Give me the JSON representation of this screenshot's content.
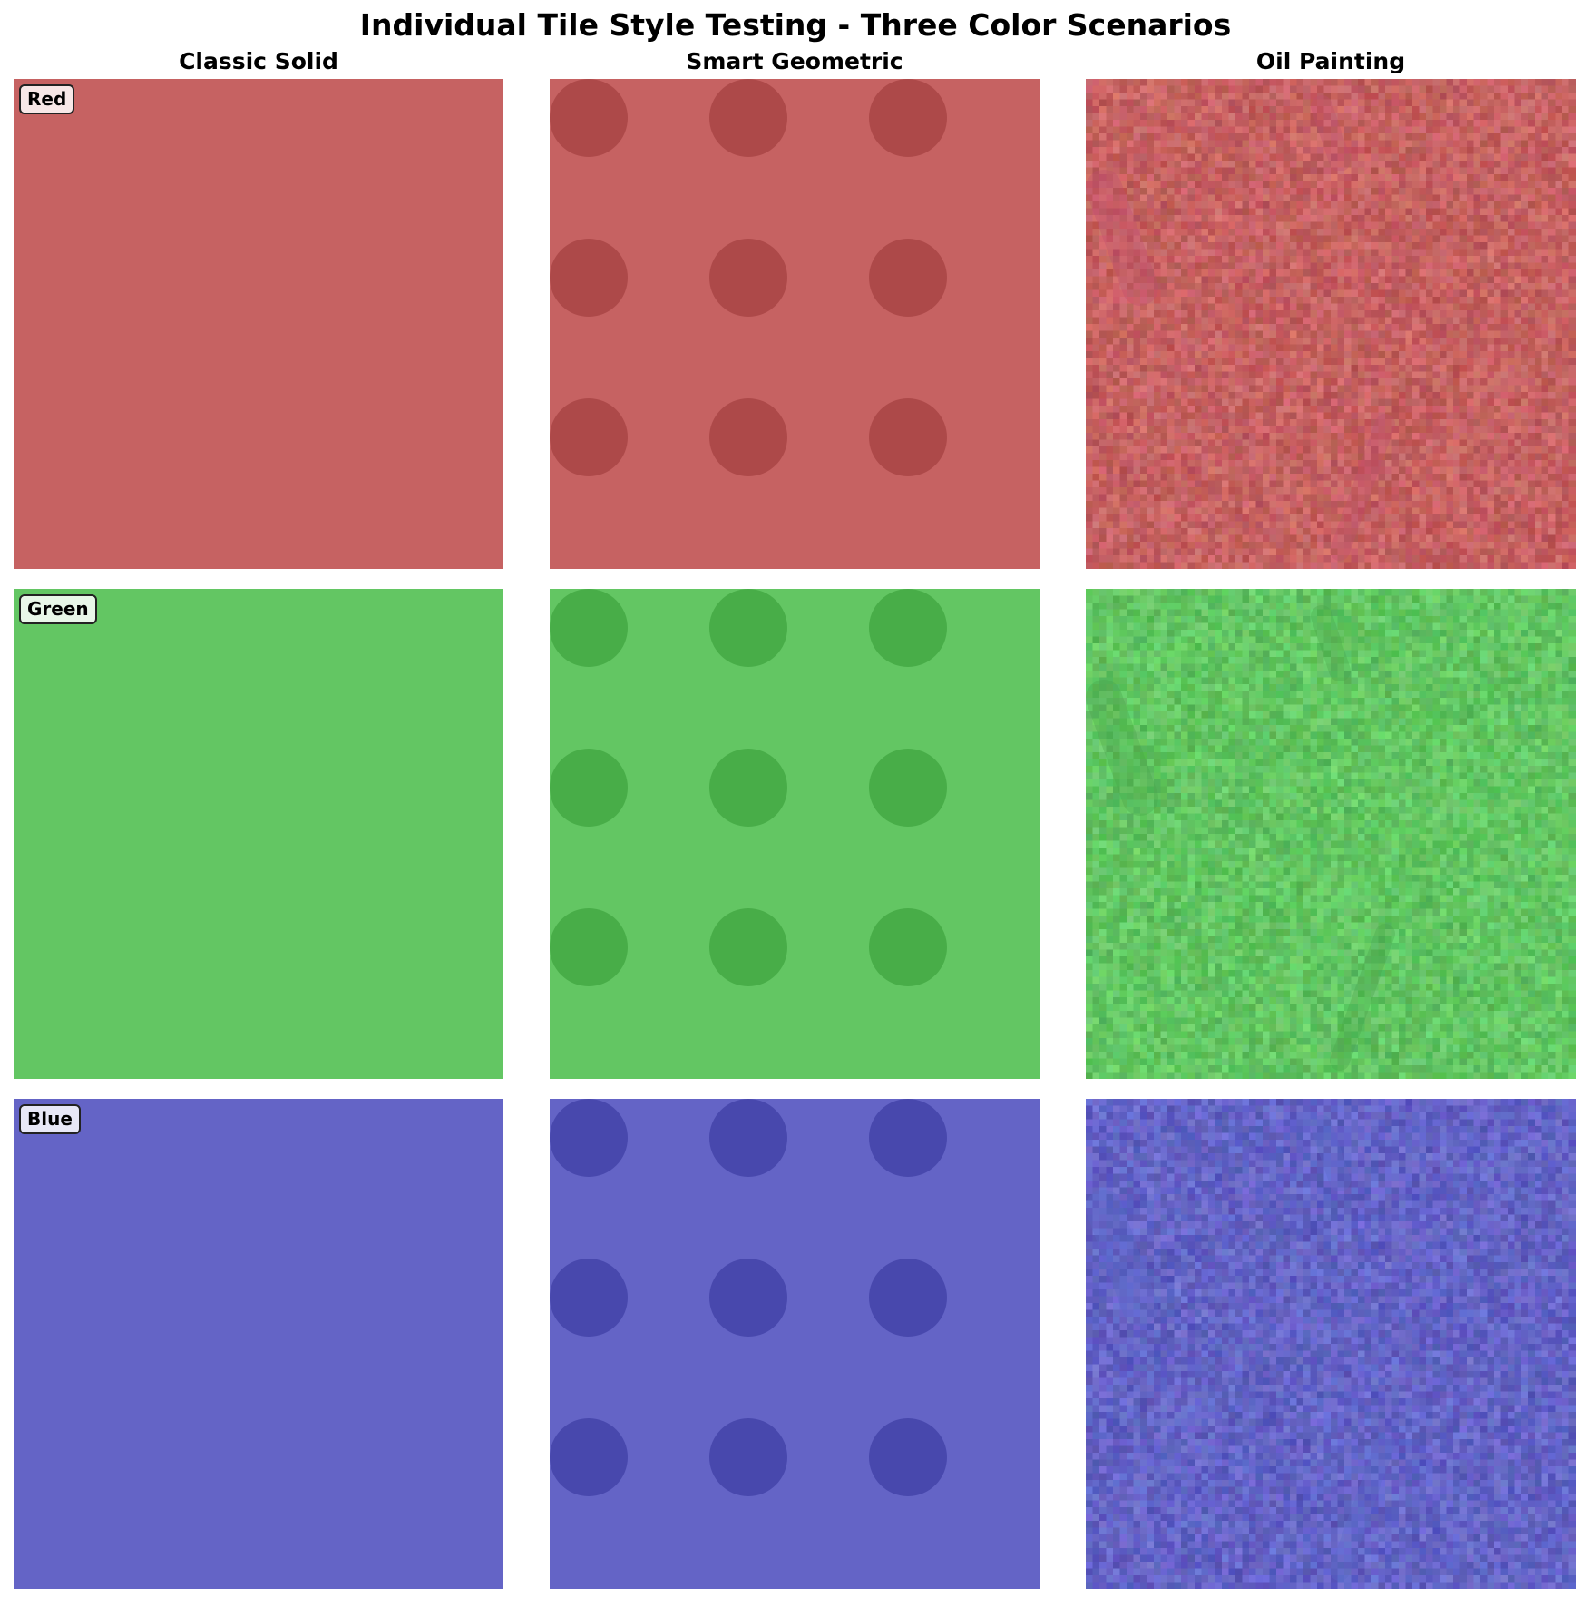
{
  "title": "Individual Tile Style Testing - Three Color Scenarios",
  "styles": [
    "Classic Solid",
    "Smart Geometric",
    "Oil Painting"
  ],
  "colors": [
    {
      "label": "Red",
      "base": "#c66262",
      "dark": "#ad4949",
      "accent": "#c04f6e"
    },
    {
      "label": "Green",
      "base": "#63c663",
      "dark": "#48ad48",
      "accent": "#4aa54a"
    },
    {
      "label": "Blue",
      "base": "#6464c6",
      "dark": "#4848ad",
      "accent": "#5a6ac8"
    }
  ]
}
